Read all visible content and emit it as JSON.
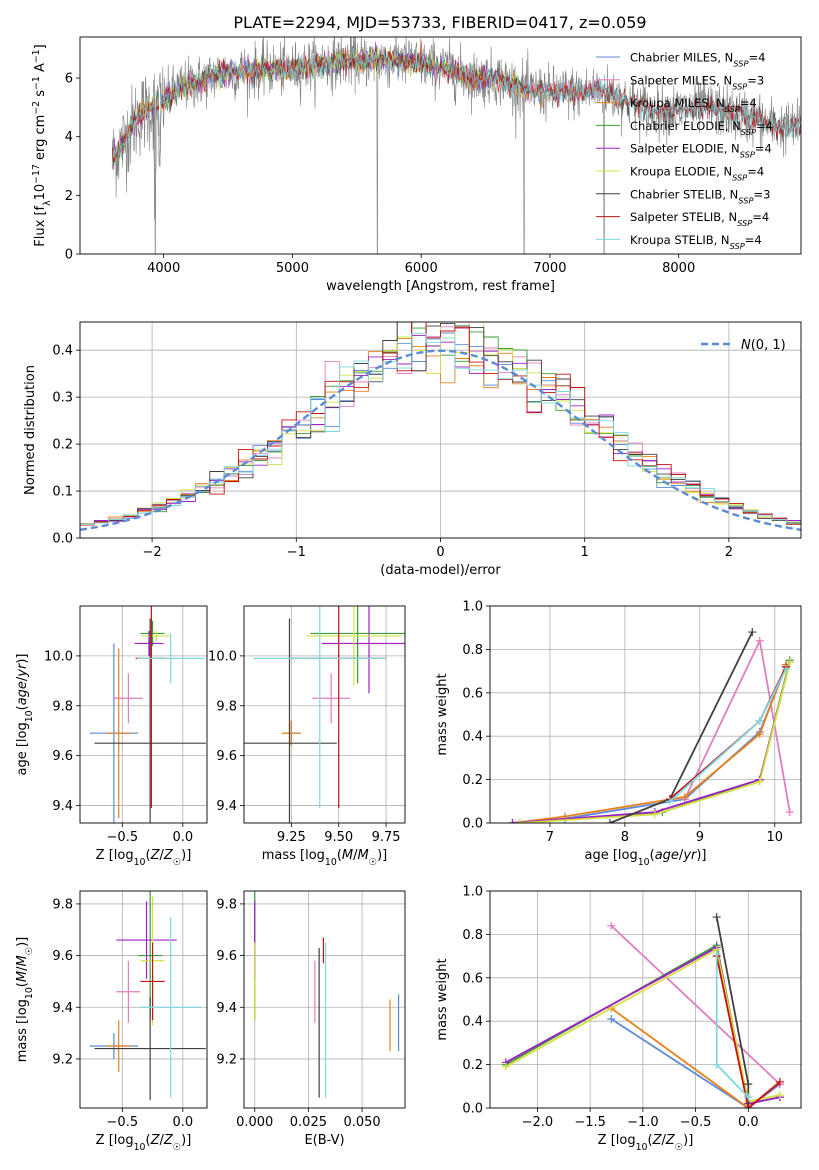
{
  "figure": {
    "title": "PLATE=2294, MJD=53733, FIBERID=0417, z=0.059"
  },
  "colors": {
    "Chabrier MILES": "#5b8bd6",
    "Salpeter MILES": "#e07fbf",
    "Kroupa MILES": "#e8801c",
    "Chabrier ELODIE": "#3a9a3a",
    "Salpeter ELODIE": "#a020c8",
    "Kroupa ELODIE": "#d4e040",
    "Chabrier STELIB": "#404040",
    "Salpeter STELIB": "#c81010",
    "Kroupa STELIB": "#7fd8e0",
    "data": "#808080",
    "grid": "#b0b0b0",
    "gaussian": "#5b8bd6"
  },
  "chart_data": [
    {
      "id": "spectrum",
      "type": "line",
      "xlabel": "wavelength [Angstrom, rest frame]",
      "ylabel": "Flux [f_λ10^-17 erg cm^-2 s^-1 A^-1]",
      "xlim": [
        3350,
        8950
      ],
      "ylim": [
        0,
        7.4
      ],
      "xticks": [
        4000,
        5000,
        6000,
        7000,
        8000
      ],
      "yticks": [
        0,
        2,
        4,
        6
      ],
      "grid": false,
      "legend_position": "top-right",
      "legend": [
        {
          "name": "Chabrier MILES",
          "nssp": "N_SSP=4"
        },
        {
          "name": "Salpeter MILES",
          "nssp": "N_SSP=3"
        },
        {
          "name": "Kroupa MILES",
          "nssp": "N_SSP=4"
        },
        {
          "name": "Chabrier ELODIE",
          "nssp": "N_SSP=4"
        },
        {
          "name": "Salpeter ELODIE",
          "nssp": "N_SSP=4"
        },
        {
          "name": "Kroupa ELODIE",
          "nssp": "N_SSP=4"
        },
        {
          "name": "Chabrier STELIB",
          "nssp": "N_SSP=3"
        },
        {
          "name": "Salpeter STELIB",
          "nssp": "N_SSP=4"
        },
        {
          "name": "Kroupa STELIB",
          "nssp": "N_SSP=4"
        }
      ],
      "continuum": {
        "x": [
          3600,
          3700,
          3800,
          3900,
          4000,
          4100,
          4200,
          4300,
          4400,
          4500,
          4600,
          4800,
          5000,
          5200,
          5400,
          5600,
          5800,
          6000,
          6200,
          6400,
          6600,
          6800,
          7000,
          7200,
          7400,
          7600,
          7800,
          8000,
          8200,
          8400,
          8600,
          8800
        ],
        "y": [
          3.2,
          3.9,
          4.7,
          5.0,
          5.2,
          5.6,
          5.8,
          5.9,
          6.1,
          6.2,
          6.2,
          6.3,
          6.3,
          6.5,
          6.6,
          6.6,
          6.6,
          6.5,
          6.3,
          6.0,
          6.0,
          5.6,
          5.5,
          5.5,
          5.6,
          5.2,
          4.9,
          4.9,
          5.0,
          4.8,
          4.6,
          4.3
        ]
      },
      "dips": [
        {
          "x": 3934,
          "y": 0.0
        },
        {
          "x": 5660,
          "y": 0.0
        },
        {
          "x": 6800,
          "y": 0.0
        },
        {
          "x": 7420,
          "y": 0.0
        }
      ]
    },
    {
      "id": "residuals",
      "type": "histogram",
      "xlabel": "(data-model)/error",
      "ylabel": "Normed distribution",
      "xlim": [
        -2.5,
        2.5
      ],
      "ylim": [
        0,
        0.46
      ],
      "xticks": [
        -2,
        -1,
        0,
        1,
        2
      ],
      "yticks": [
        0.0,
        0.1,
        0.2,
        0.3,
        0.4
      ],
      "grid": true,
      "bin_width": 0.1,
      "legend_position": "top-right",
      "legend_label": "N(0,1)",
      "gaussian": {
        "mean": 0,
        "sigma": 1
      }
    },
    {
      "id": "age-vs-Z",
      "type": "errorbar",
      "xlabel": "Z [log10(Z/Z☉)]",
      "ylabel": "age [log10(age/yr)]",
      "xlim": [
        -0.85,
        0.2
      ],
      "ylim": [
        9.33,
        10.2
      ],
      "xticks": [
        -0.5,
        0.0
      ],
      "yticks": [
        9.4,
        9.6,
        9.8,
        10.0
      ],
      "grid": true,
      "points": [
        {
          "series": "Chabrier MILES",
          "x": -0.57,
          "xerr": 0.2,
          "y": 9.69,
          "yerr": 0.36
        },
        {
          "series": "Salpeter MILES",
          "x": -0.45,
          "xerr": 0.12,
          "y": 9.83,
          "yerr": 0.1
        },
        {
          "series": "Kroupa MILES",
          "x": -0.53,
          "xerr": 0.1,
          "y": 9.69,
          "yerr": 0.34
        },
        {
          "series": "Chabrier ELODIE",
          "x": -0.25,
          "xerr": 0.1,
          "y": 10.09,
          "yerr": 0.05
        },
        {
          "series": "Salpeter ELODIE",
          "x": -0.28,
          "xerr": 0.12,
          "y": 10.05,
          "yerr": 0.05
        },
        {
          "series": "Kroupa ELODIE",
          "x": -0.22,
          "xerr": 0.12,
          "y": 10.08,
          "yerr": 0.02
        },
        {
          "series": "Chabrier STELIB",
          "x": -0.27,
          "xerr": 0.46,
          "y": 9.65,
          "yerr": 0.5
        },
        {
          "series": "Salpeter STELIB",
          "x": -0.26,
          "xerr": 0.13,
          "y": 9.99,
          "yerr": 0.6
        },
        {
          "series": "Kroupa STELIB",
          "x": -0.1,
          "xerr": 0.28,
          "y": 9.99,
          "yerr": 0.1
        }
      ]
    },
    {
      "id": "age-vs-mass",
      "type": "errorbar",
      "xlabel": "mass [log10(M/M☉)]",
      "ylabel": "",
      "xlim": [
        9.0,
        9.85
      ],
      "ylim": [
        9.33,
        10.2
      ],
      "xticks": [
        9.25,
        9.5,
        9.75
      ],
      "yticks": [
        9.4,
        9.6,
        9.8,
        10.0
      ],
      "grid": true,
      "points": [
        {
          "series": "Chabrier MILES",
          "x": 9.25,
          "xerr": 0.05,
          "y": 9.69,
          "yerr": 0.05
        },
        {
          "series": "Salpeter MILES",
          "x": 9.46,
          "xerr": 0.1,
          "y": 9.83,
          "yerr": 0.1
        },
        {
          "series": "Kroupa MILES",
          "x": 9.25,
          "xerr": 0.05,
          "y": 9.69,
          "yerr": 0.05
        },
        {
          "series": "Chabrier ELODIE",
          "x": 9.6,
          "xerr": 0.25,
          "y": 10.09,
          "yerr": 0.2
        },
        {
          "series": "Salpeter ELODIE",
          "x": 9.66,
          "xerr": 0.25,
          "y": 10.05,
          "yerr": 0.2
        },
        {
          "series": "Kroupa ELODIE",
          "x": 9.58,
          "xerr": 0.25,
          "y": 10.08,
          "yerr": 0.2
        },
        {
          "series": "Chabrier STELIB",
          "x": 9.24,
          "xerr": 0.25,
          "y": 9.65,
          "yerr": 0.5
        },
        {
          "series": "Salpeter STELIB",
          "x": 9.5,
          "xerr": 0.25,
          "y": 9.99,
          "yerr": 0.6
        },
        {
          "series": "Kroupa STELIB",
          "x": 9.4,
          "xerr": 0.35,
          "y": 9.99,
          "yerr": 0.6
        }
      ]
    },
    {
      "id": "weight-vs-age",
      "type": "line",
      "xlabel": "age [log10(age/yr)]",
      "ylabel": "mass weight",
      "xlim": [
        6.2,
        10.35
      ],
      "ylim": [
        0,
        1.0
      ],
      "xticks": [
        7,
        8,
        9,
        10
      ],
      "yticks": [
        0.0,
        0.2,
        0.4,
        0.6,
        0.8,
        1.0
      ],
      "grid": true,
      "series": [
        {
          "name": "Chabrier MILES",
          "x": [
            6.5,
            7.2,
            8.8,
            9.8,
            10.15
          ],
          "y": [
            0.0,
            0.02,
            0.11,
            0.42,
            0.72
          ]
        },
        {
          "name": "Salpeter MILES",
          "x": [
            8.8,
            9.8,
            10.2
          ],
          "y": [
            0.11,
            0.84,
            0.05
          ]
        },
        {
          "name": "Kroupa MILES",
          "x": [
            6.5,
            7.2,
            8.8,
            9.8,
            10.15
          ],
          "y": [
            0.0,
            0.03,
            0.12,
            0.41,
            0.73
          ]
        },
        {
          "name": "Chabrier ELODIE",
          "x": [
            6.6,
            8.5,
            9.8,
            10.2
          ],
          "y": [
            0.0,
            0.05,
            0.2,
            0.75
          ]
        },
        {
          "name": "Salpeter ELODIE",
          "x": [
            6.5,
            8.4,
            9.8,
            10.2
          ],
          "y": [
            0.0,
            0.05,
            0.2,
            0.74
          ]
        },
        {
          "name": "Kroupa ELODIE",
          "x": [
            6.6,
            8.4,
            9.8,
            10.2
          ],
          "y": [
            0.0,
            0.04,
            0.19,
            0.74
          ]
        },
        {
          "name": "Chabrier STELIB",
          "x": [
            7.8,
            8.6,
            9.7
          ],
          "y": [
            0.0,
            0.11,
            0.88
          ]
        },
        {
          "name": "Salpeter STELIB",
          "x": [
            8.6,
            9.8,
            10.15
          ],
          "y": [
            0.11,
            0.47,
            0.72
          ]
        },
        {
          "name": "Kroupa STELIB",
          "x": [
            8.6,
            9.8,
            10.15
          ],
          "y": [
            0.1,
            0.47,
            0.71
          ]
        }
      ]
    },
    {
      "id": "mass-vs-Z",
      "type": "errorbar",
      "xlabel": "Z [log10(Z/Z☉)]",
      "ylabel": "mass [log10(M/M☉)]",
      "xlim": [
        -0.85,
        0.2
      ],
      "ylim": [
        9.01,
        9.85
      ],
      "xticks": [
        -0.5,
        0.0
      ],
      "yticks": [
        9.2,
        9.4,
        9.6,
        9.8
      ],
      "grid": true,
      "points": [
        {
          "series": "Chabrier MILES",
          "x": -0.57,
          "xerr": 0.2,
          "y": 9.25,
          "yerr": 0.05
        },
        {
          "series": "Salpeter MILES",
          "x": -0.45,
          "xerr": 0.1,
          "y": 9.46,
          "yerr": 0.12
        },
        {
          "series": "Kroupa MILES",
          "x": -0.53,
          "xerr": 0.1,
          "y": 9.25,
          "yerr": 0.1
        },
        {
          "series": "Chabrier ELODIE",
          "x": -0.27,
          "xerr": 0.1,
          "y": 9.6,
          "yerr": 0.25
        },
        {
          "series": "Salpeter ELODIE",
          "x": -0.3,
          "xerr": 0.25,
          "y": 9.66,
          "yerr": 0.15
        },
        {
          "series": "Kroupa ELODIE",
          "x": -0.25,
          "xerr": 0.1,
          "y": 9.58,
          "yerr": 0.25
        },
        {
          "series": "Chabrier STELIB",
          "x": -0.27,
          "xerr": 0.46,
          "y": 9.24,
          "yerr": 0.2
        },
        {
          "series": "Salpeter STELIB",
          "x": -0.25,
          "xerr": 0.1,
          "y": 9.5,
          "yerr": 0.15
        },
        {
          "series": "Kroupa STELIB",
          "x": -0.1,
          "xerr": 0.25,
          "y": 9.4,
          "yerr": 0.35
        }
      ]
    },
    {
      "id": "mass-vs-EBV",
      "type": "errorbar",
      "xlabel": "E(B-V)",
      "ylabel": "",
      "xlim": [
        -0.005,
        0.07
      ],
      "ylim": [
        9.01,
        9.85
      ],
      "xticks": [
        0.0,
        0.025,
        0.05
      ],
      "xticklabels": [
        "0.000",
        "0.025",
        "0.050"
      ],
      "yticks": [
        9.2,
        9.4,
        9.6,
        9.8
      ],
      "grid": true,
      "points": [
        {
          "series": "Chabrier MILES",
          "x": 0.067,
          "y": 9.34,
          "yerr": 0.11
        },
        {
          "series": "Salpeter MILES",
          "x": 0.028,
          "y": 9.46,
          "yerr": 0.12
        },
        {
          "series": "Kroupa MILES",
          "x": 0.063,
          "y": 9.33,
          "yerr": 0.1
        },
        {
          "series": "Chabrier ELODIE",
          "x": 0.0,
          "y": 9.6,
          "yerr": 0.25
        },
        {
          "series": "Salpeter ELODIE",
          "x": 0.0,
          "y": 9.66,
          "yerr": 0.15
        },
        {
          "series": "Kroupa ELODIE",
          "x": 0.0,
          "y": 9.5,
          "yerr": 0.15
        },
        {
          "series": "Chabrier STELIB",
          "x": 0.03,
          "y": 9.34,
          "yerr": 0.29
        },
        {
          "series": "Salpeter STELIB",
          "x": 0.032,
          "y": 9.62,
          "yerr": 0.05
        },
        {
          "series": "Kroupa STELIB",
          "x": 0.033,
          "y": 9.35,
          "yerr": 0.3
        }
      ]
    },
    {
      "id": "weight-vs-Z",
      "type": "line",
      "xlabel": "Z [log10(Z/Z☉)]",
      "ylabel": "mass weight",
      "xlim": [
        -2.45,
        0.5
      ],
      "ylim": [
        0,
        1.0
      ],
      "xticks": [
        -2.0,
        -1.5,
        -1.0,
        -0.5,
        0.0
      ],
      "yticks": [
        0.0,
        0.2,
        0.4,
        0.6,
        0.8,
        1.0
      ],
      "grid": true,
      "series": [
        {
          "name": "Chabrier MILES",
          "x": [
            -1.3,
            0.0,
            0.3
          ],
          "y": [
            0.41,
            0.0,
            0.11
          ]
        },
        {
          "name": "Salpeter MILES",
          "x": [
            -1.3,
            0.3
          ],
          "y": [
            0.84,
            0.11
          ]
        },
        {
          "name": "Kroupa MILES",
          "x": [
            -1.3,
            0.0,
            0.3
          ],
          "y": [
            0.46,
            0.0,
            0.12
          ]
        },
        {
          "name": "Chabrier ELODIE",
          "x": [
            -2.3,
            -0.3,
            0.0,
            0.3
          ],
          "y": [
            0.2,
            0.75,
            0.02,
            0.05
          ]
        },
        {
          "name": "Salpeter ELODIE",
          "x": [
            -2.3,
            -0.3,
            0.0,
            0.3
          ],
          "y": [
            0.21,
            0.74,
            0.02,
            0.05
          ]
        },
        {
          "name": "Kroupa ELODIE",
          "x": [
            -2.3,
            -0.3,
            0.0,
            0.3
          ],
          "y": [
            0.19,
            0.73,
            0.03,
            0.06
          ]
        },
        {
          "name": "Chabrier STELIB",
          "x": [
            -0.3,
            0.0,
            0.0
          ],
          "y": [
            0.88,
            0.11,
            0.0
          ]
        },
        {
          "name": "Salpeter STELIB",
          "x": [
            -0.3,
            0.0,
            0.3
          ],
          "y": [
            0.7,
            0.0,
            0.12
          ]
        },
        {
          "name": "Kroupa STELIB",
          "x": [
            -0.3,
            -0.3,
            0.0
          ],
          "y": [
            0.71,
            0.2,
            0.05
          ]
        }
      ]
    }
  ]
}
